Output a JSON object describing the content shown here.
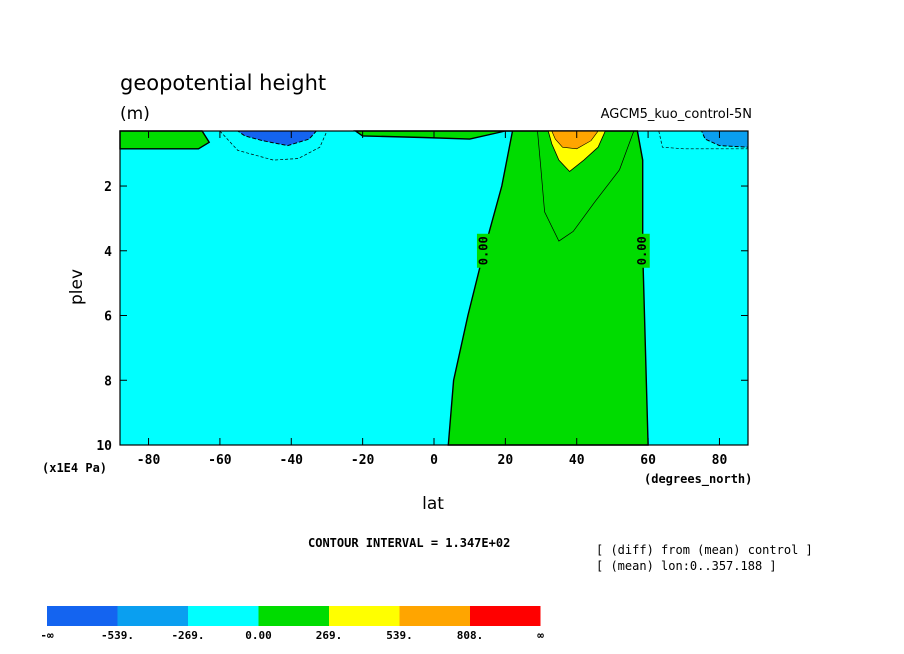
{
  "header": {
    "title": "geopotential height",
    "units": "(m)",
    "dataset": "AGCM5_kuo_control-5N"
  },
  "notes": {
    "contour_interval": "CONTOUR INTERVAL = 1.347E+02",
    "diff_line": "[ (diff) from (mean) control ]",
    "mean_line": "[ (mean) lon:0..357.188 ]"
  },
  "chart_data": {
    "type": "heatmap",
    "subtype": "filled-contour",
    "title": "geopotential height",
    "xlabel": "lat",
    "x_units": "(degrees_north)",
    "ylabel": "plev",
    "y_units": "(x1E4 Pa)",
    "xlim": [
      -88,
      88
    ],
    "ylim": [
      10,
      0.3
    ],
    "x_ticks": [
      -80,
      -60,
      -40,
      -20,
      0,
      20,
      40,
      60,
      80
    ],
    "x_tick_labels": [
      "-80",
      "-60",
      "-40",
      "-20",
      "0",
      "20",
      "40",
      "60",
      "80"
    ],
    "y_ticks": [
      2,
      4,
      6,
      8,
      10
    ],
    "y_tick_labels": [
      "2",
      "4",
      "6",
      "8",
      "10"
    ],
    "contour_labels": [
      {
        "text": "0.00",
        "lat": 14,
        "plev": 4.0
      },
      {
        "text": "0.00",
        "lat": 58.5,
        "plev": 4.0
      }
    ],
    "colorbar": {
      "levels": [
        "-∞",
        "-539.",
        "-269.",
        "0.00",
        "269.",
        "539.",
        "808.",
        "∞"
      ],
      "colors": [
        "#1464f0",
        "#0a9ff0",
        "#00ffff",
        "#00dc00",
        "#ffff00",
        "#ffa500",
        "#ff0000"
      ]
    },
    "regions": [
      {
        "range": "[-269, 0)",
        "color": "#00ffff",
        "lat": [
          -88,
          88
        ],
        "plev": [
          0.3,
          10
        ]
      },
      {
        "range": "[0, 269)",
        "color": "#00dc00",
        "boundary_lat_at_plev": {
          "10": [
            4,
            60
          ],
          "8": [
            5.5,
            59.5
          ],
          "6": [
            9.5,
            59
          ],
          "4": [
            14,
            58.5
          ],
          "2": [
            19,
            58.5
          ],
          "0.3": [
            22,
            57
          ]
        }
      },
      {
        "range": "[0, 269)",
        "color": "#00dc00",
        "lat": [
          -88,
          -65
        ],
        "plev": [
          0.3,
          1.1
        ]
      },
      {
        "range": "[0, 269)",
        "color": "#00dc00",
        "lat": [
          -30,
          20
        ],
        "plev": [
          0.3,
          0.8
        ]
      },
      {
        "range": "[269, 539)",
        "color": "#ffff00",
        "lat": [
          32,
          48
        ],
        "plev": [
          0.3,
          1.55
        ]
      },
      {
        "range": "[539, 808)",
        "color": "#ffa500",
        "lat": [
          33,
          46
        ],
        "plev": [
          0.3,
          0.9
        ]
      },
      {
        "range": "[-539, -269)",
        "color": "#0a9ff0",
        "lat": [
          -55,
          -33
        ],
        "plev": [
          0.3,
          0.75
        ]
      },
      {
        "range": "[-539, -269)",
        "color": "#0a9ff0",
        "lat": [
          73,
          88
        ],
        "plev": [
          0.3,
          0.85
        ]
      }
    ]
  }
}
